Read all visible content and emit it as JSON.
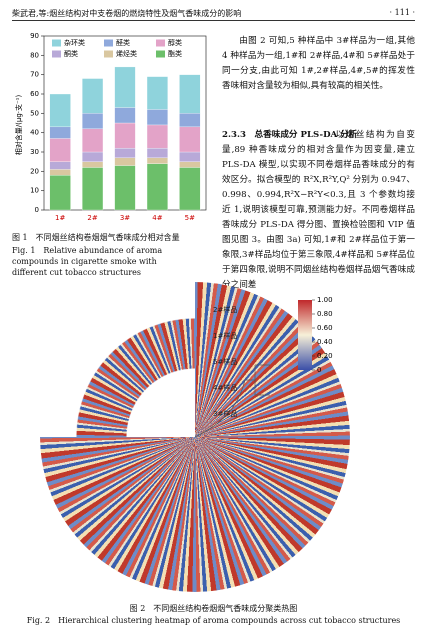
{
  "header": {
    "title": "柴武君,等:烟丝结构对中支卷烟的燃烧特性及烟气香味成分的影响",
    "page": "· 111 ·"
  },
  "chart_data": {
    "type": "bar",
    "stacked": true,
    "y_label": "相对含量/(μg·支⁻¹)",
    "categories": [
      "1#",
      "2#",
      "3#",
      "4#",
      "5#"
    ],
    "series": [
      {
        "name": "酯类",
        "color": "#6cbf6a",
        "values": [
          18,
          22,
          23,
          24,
          22
        ]
      },
      {
        "name": "烯烃类",
        "color": "#d9c7a0",
        "values": [
          3,
          3,
          4,
          3,
          3
        ]
      },
      {
        "name": "酮类",
        "color": "#b8a9d8",
        "values": [
          4,
          5,
          5,
          5,
          5
        ]
      },
      {
        "name": "醇类",
        "color": "#e3a3c8",
        "values": [
          12,
          12,
          13,
          12,
          13
        ]
      },
      {
        "name": "醛类",
        "color": "#8fa9dc",
        "values": [
          6,
          8,
          8,
          8,
          7
        ]
      },
      {
        "name": "杂环类",
        "color": "#8fd3dc",
        "values": [
          17,
          18,
          21,
          17,
          20
        ]
      }
    ],
    "ylim": [
      0,
      90
    ],
    "yticks": [
      0,
      10,
      20,
      30,
      40,
      50,
      60,
      70,
      80,
      90
    ]
  },
  "figure1_caption": {
    "zh": "图 1　不同烟丝结构卷烟烟气香味成分相对含量",
    "en": "Fig. 1　Relative abundance of aroma compounds in cigarette smoke with different cut tobacco structures"
  },
  "text": {
    "paragraph1": "由图 2 可知,5 种样品中 3#样品为一组,其他 4 种样品为一组,1#和 2#样品,4#和 5#样品处于同一分支,由此可知 1#,2#样品,4#,5#的挥发性香味相对含量较为相似,具有较高的相关性。",
    "section_number": "2.3.3",
    "section_title": "总香味成分 PLS-DA 分析",
    "paragraph2": "以烟丝结构为自变量,89 种香味成分的相对含量作为因变量,建立 PLS-DA 模型,以实现不同卷烟样品香味成分的有效区分。拟合模型的 R²X,R²Y,Q² 分别为 0.947、0.998、0.994,R²X−R²Y<0.3,且 3 个参数均接近 1,说明该模型可靠,预测能力好。不同卷烟样品香味成分 PLS-DA 得分图、置换检验图和 VIP 值图见图 3。由图 3a) 可知,1#和 2#样品位于第一象限,3#样品均位于第三象限,4#样品和 5#样品位于第四象限,说明不同烟丝结构卷烟样品烟气香味成分之间差"
  },
  "heatmap": {
    "sample_labels": [
      "2#样品",
      "1#样品",
      "5#样品",
      "4#样品",
      "3#样品"
    ],
    "colorbar_lim": [
      0,
      1
    ],
    "colorbar_ticks": [
      0,
      {
        "value": 0.2,
        "label": "0.20"
      },
      {
        "value": 0.4,
        "label": "0.40"
      },
      {
        "value": 0.6,
        "label": "0.60"
      },
      {
        "value": 0.8,
        "label": "0.80"
      },
      {
        "value": 1,
        "label": "1.00"
      }
    ]
  },
  "figure2_caption": {
    "zh": "图 2　不同烟丝结构卷烟烟气香味成分聚类热图",
    "en": "Fig. 2　Hierarchical clustering heatmap of aroma compounds across cut tobacco structures"
  }
}
